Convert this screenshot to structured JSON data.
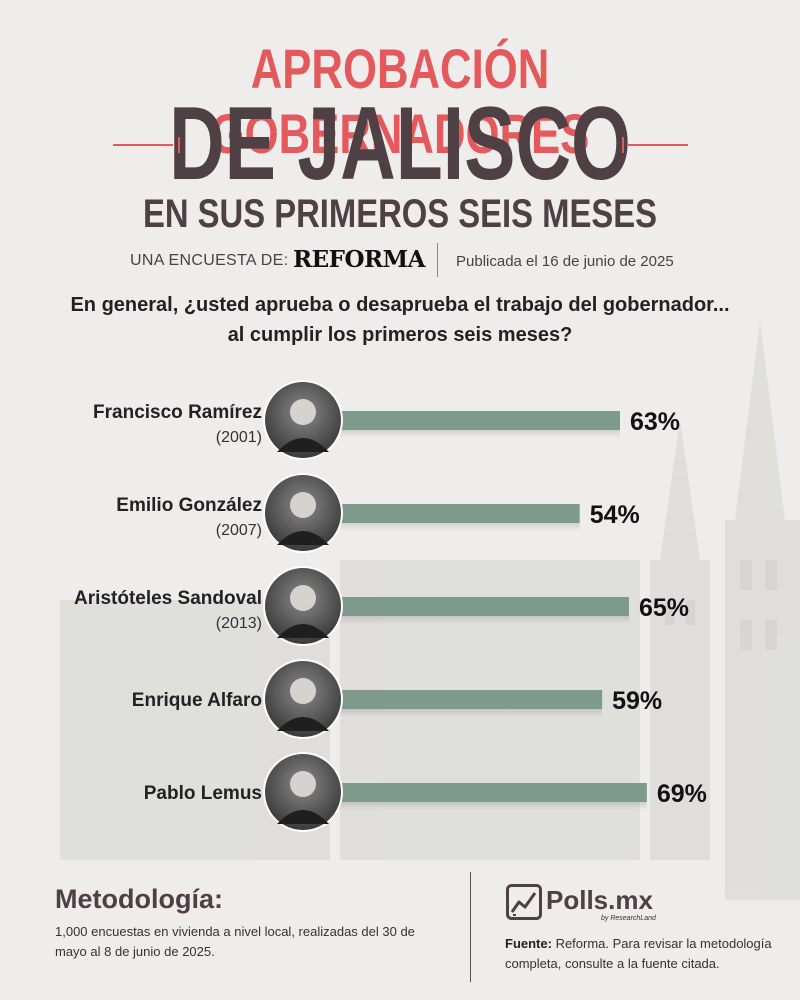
{
  "header": {
    "title_line1": "APROBACIÓN GOBERNADORES",
    "title_line2": "DE JALISCO",
    "title_line3": "EN SUS PRIMEROS SEIS MESES",
    "survey_by_label": "UNA ENCUESTA DE:",
    "survey_brand": "REFORMA",
    "published": "Publicada el 16 de junio de 2025"
  },
  "question": {
    "line1": "En general, ¿usted aprueba o desaprueba el trabajo del gobernador...",
    "line2": "al cumplir los primeros seis meses?"
  },
  "chart_data": {
    "type": "bar",
    "orientation": "horizontal",
    "categories": [
      "Francisco Ramírez",
      "Emilio González",
      "Aristóteles Sandoval",
      "Enrique Alfaro",
      "Pablo Lemus"
    ],
    "years": [
      "(2001)",
      "(2007)",
      "(2013)",
      "",
      ""
    ],
    "values": [
      63,
      54,
      65,
      59,
      69
    ],
    "value_labels": [
      "63%",
      "54%",
      "65%",
      "59%",
      "69%"
    ],
    "unit": "%",
    "xlim": [
      0,
      100
    ],
    "bar_color": "#7d9a8c",
    "grid": false,
    "legend": "none"
  },
  "methodology": {
    "title": "Metodología:",
    "text": "1,000 encuestas en vivienda a nivel local, realizadas del 30 de mayo al 8 de junio de 2025."
  },
  "footer": {
    "brand": "Polls.mx",
    "brand_sub": "by ResearchLand",
    "source_label": "Fuente:",
    "source_text": " Reforma. Para revisar la metodología completa, consulte a la fuente citada."
  },
  "colors": {
    "accent": "#e45a5c",
    "dark": "#4e4044",
    "bar": "#7d9a8c",
    "background": "#eeedeb"
  }
}
